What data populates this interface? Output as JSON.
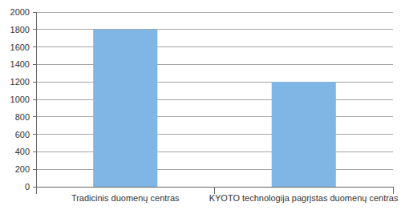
{
  "chart_data": {
    "type": "bar",
    "categories": [
      "Tradicinis duomenų centras",
      "KYOTO technologija pagrįstas duomenų centras"
    ],
    "values": [
      1800,
      1200
    ],
    "color": "#7fb6e6",
    "ylim": [
      0,
      2000
    ],
    "yticks": [
      0,
      200,
      400,
      600,
      800,
      1000,
      1200,
      1400,
      1600,
      1800,
      2000
    ],
    "grid": true
  }
}
